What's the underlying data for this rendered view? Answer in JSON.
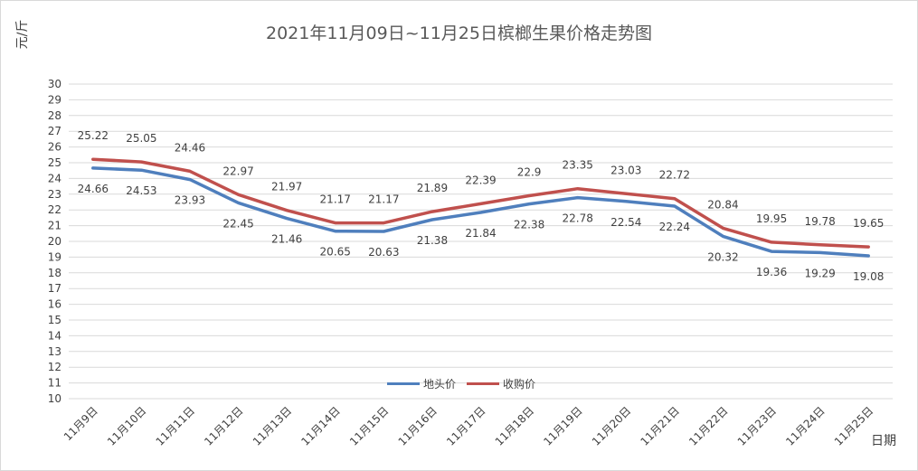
{
  "chart_data": {
    "type": "line",
    "title": "2021年11月09日~11月25日槟榔生果价格走势图",
    "ylabel": "元/斤",
    "xlabel": "日期",
    "ylim": [
      10,
      30
    ],
    "yticks": [
      10,
      11,
      12,
      13,
      14,
      15,
      16,
      17,
      18,
      19,
      20,
      21,
      22,
      23,
      24,
      25,
      26,
      27,
      28,
      29,
      30
    ],
    "grid": true,
    "legend_position": "center",
    "categories": [
      "11月9日",
      "11月10日",
      "11月11日",
      "11月12日",
      "11月13日",
      "11月14日",
      "11月15日",
      "11月16日",
      "11月17日",
      "11月18日",
      "11月19日",
      "11月20日",
      "11月21日",
      "11月22日",
      "11月23日",
      "11月24日",
      "11月25日"
    ],
    "series": [
      {
        "name": "地头价",
        "color": "#4F7FBD",
        "values": [
          24.66,
          24.53,
          23.93,
          22.45,
          21.46,
          20.65,
          20.63,
          21.38,
          21.84,
          22.38,
          22.78,
          22.54,
          22.24,
          20.32,
          19.36,
          19.29,
          19.08
        ],
        "labels": [
          "24.66",
          "24.53",
          "23.93",
          "22.45",
          "21.46",
          "20.65",
          "20.63",
          "21.38",
          "21.84",
          "22.38",
          "22.78",
          "22.54",
          "22.24",
          "20.32",
          "19.36",
          "19.29",
          "19.08"
        ]
      },
      {
        "name": "收购价",
        "color": "#C0504D",
        "values": [
          25.22,
          25.05,
          24.46,
          22.97,
          21.97,
          21.17,
          21.17,
          21.89,
          22.39,
          22.9,
          23.35,
          23.03,
          22.72,
          20.84,
          19.95,
          19.78,
          19.65
        ],
        "labels": [
          "25.22",
          "25.05",
          "24.46",
          "22.97",
          "21.97",
          "21.17",
          "21.17",
          "21.89",
          "22.39",
          "22.9",
          "23.35",
          "23.03",
          "22.72",
          "20.84",
          "19.95",
          "19.78",
          "19.65"
        ]
      }
    ]
  }
}
